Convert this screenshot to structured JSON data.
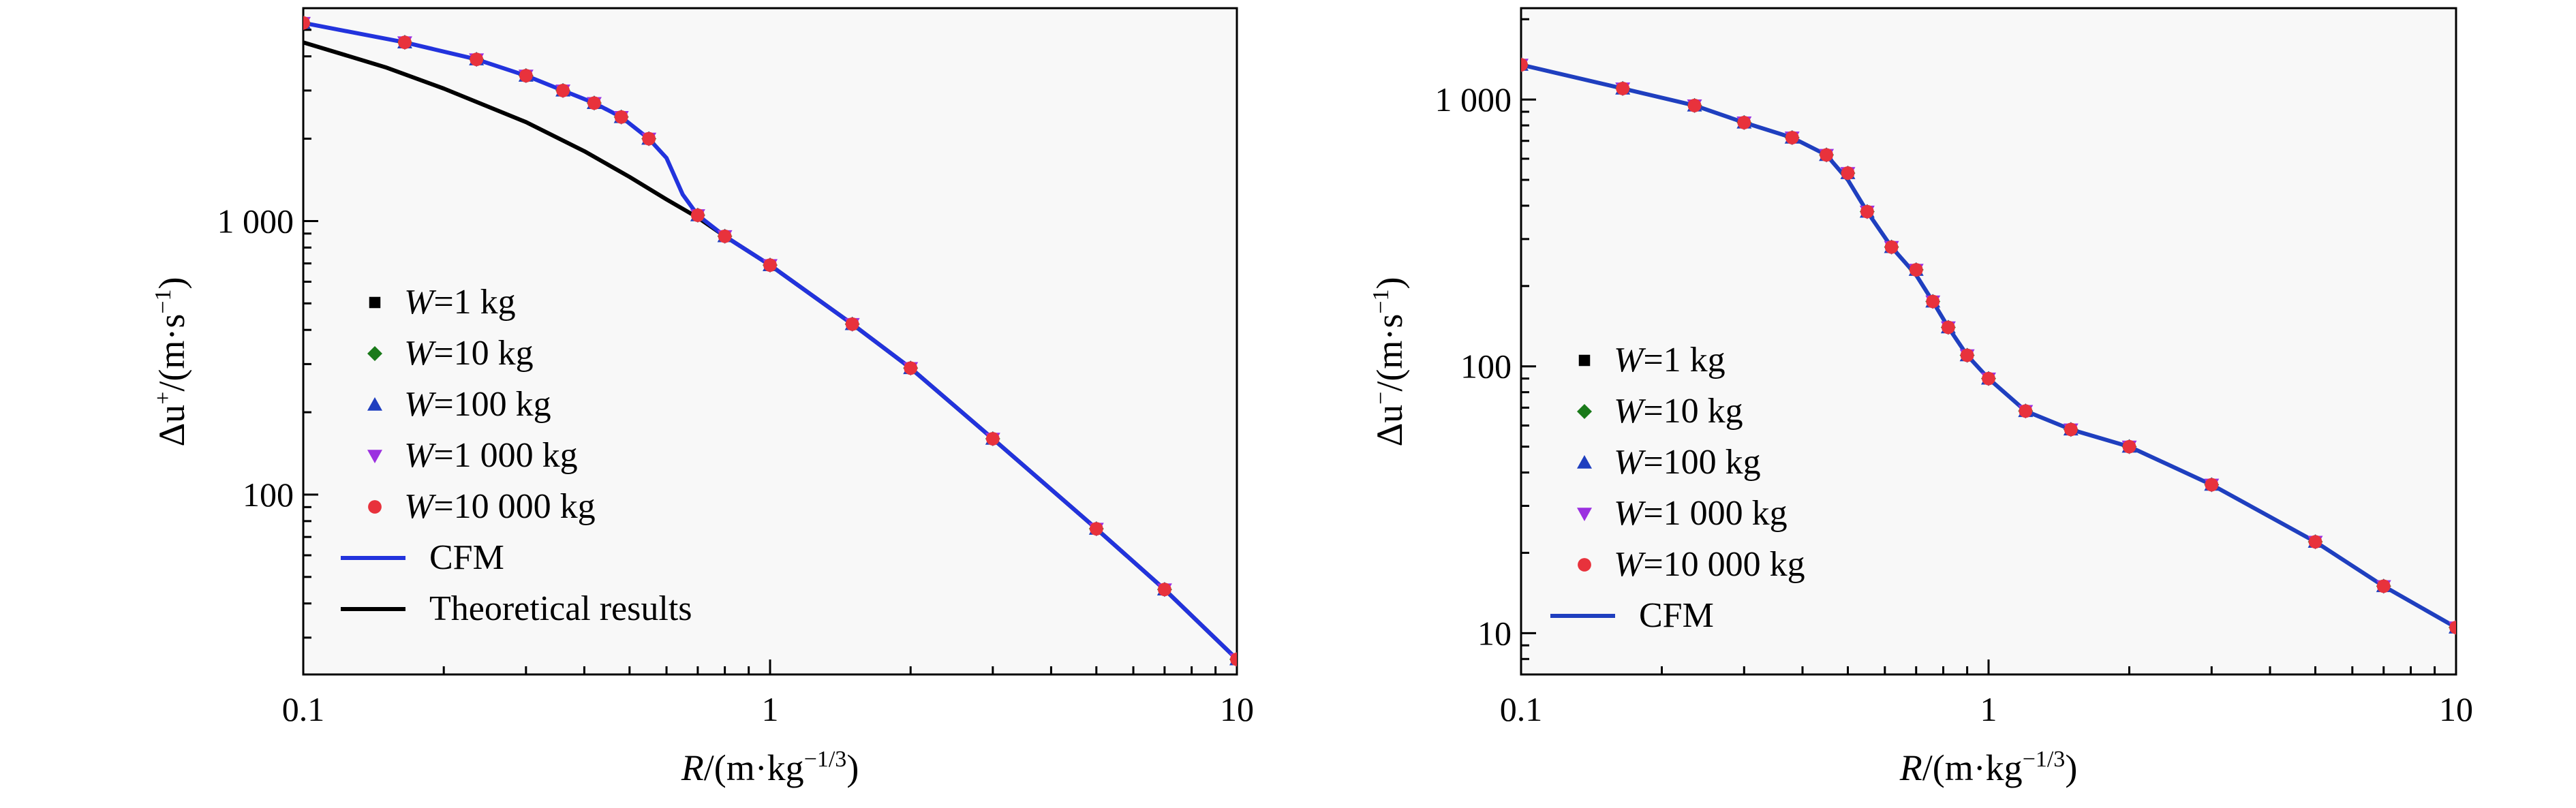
{
  "chart_data": [
    {
      "type": "scatter",
      "xscale": "log",
      "yscale": "log",
      "xlim": [
        0.1,
        10
      ],
      "ylim": [
        22,
        6000
      ],
      "xticks": [
        "0.1",
        "1",
        "10"
      ],
      "yticks": [
        "100",
        "1 000"
      ],
      "ytick_values": [
        100,
        1000
      ],
      "xlabel": {
        "var": "R",
        "unit_base": "/(m·kg",
        "unit_exp": "−1/3",
        "unit_close": ")"
      },
      "ylabel": {
        "var": "Δu",
        "sup": "+",
        "unit": "/(m·s",
        "unit_exp": "−1",
        "unit_close": ")"
      },
      "legend_position": "lower-left",
      "series": [
        {
          "name_var": "W",
          "name_rest": "=1  kg",
          "marker": "square",
          "color": "#000000",
          "x": [
            0.1,
            0.165,
            0.235,
            0.3,
            0.36,
            0.42,
            0.48,
            0.55,
            0.7,
            0.8,
            1.0,
            1.5,
            2.0,
            3.0,
            5.0,
            7.0,
            10.0
          ],
          "y": [
            5300,
            4500,
            3900,
            3400,
            3000,
            2700,
            2400,
            2000,
            1050,
            880,
            690,
            420,
            290,
            160,
            75,
            45,
            25
          ]
        },
        {
          "name_var": "W",
          "name_rest": "=10 kg",
          "marker": "diamond",
          "color": "#1a7a1a",
          "x": [
            0.1,
            0.165,
            0.235,
            0.3,
            0.36,
            0.42,
            0.48,
            0.55,
            0.7,
            0.8,
            1.0,
            1.5,
            2.0,
            3.0,
            5.0,
            7.0,
            10.0
          ],
          "y": [
            5300,
            4500,
            3900,
            3400,
            3000,
            2700,
            2400,
            2000,
            1050,
            880,
            690,
            420,
            290,
            160,
            75,
            45,
            25
          ]
        },
        {
          "name_var": "W",
          "name_rest": "=100 kg",
          "marker": "triangle-up",
          "color": "#1f3fbf",
          "x": [
            0.1,
            0.165,
            0.235,
            0.3,
            0.36,
            0.42,
            0.48,
            0.55,
            0.7,
            0.8,
            1.0,
            1.5,
            2.0,
            3.0,
            5.0,
            7.0,
            10.0
          ],
          "y": [
            5300,
            4500,
            3900,
            3400,
            3000,
            2700,
            2400,
            2000,
            1050,
            880,
            690,
            420,
            290,
            160,
            75,
            45,
            25
          ]
        },
        {
          "name_var": "W",
          "name_rest": "=1 000 kg",
          "marker": "triangle-down",
          "color": "#9b30e0",
          "x": [
            0.1,
            0.165,
            0.235,
            0.3,
            0.36,
            0.42,
            0.48,
            0.55,
            0.7,
            0.8,
            1.0,
            1.5,
            2.0,
            3.0,
            5.0,
            7.0,
            10.0
          ],
          "y": [
            5300,
            4500,
            3900,
            3400,
            3000,
            2700,
            2400,
            2000,
            1050,
            880,
            690,
            420,
            290,
            160,
            75,
            45,
            25
          ]
        },
        {
          "name_var": "W",
          "name_rest": "=10 000 kg",
          "marker": "circle",
          "color": "#e8323c",
          "x": [
            0.1,
            0.165,
            0.235,
            0.3,
            0.36,
            0.42,
            0.48,
            0.55,
            0.7,
            0.8,
            1.0,
            1.5,
            2.0,
            3.0,
            5.0,
            7.0,
            10.0
          ],
          "y": [
            5300,
            4500,
            3900,
            3400,
            3000,
            2700,
            2400,
            2000,
            1050,
            880,
            690,
            420,
            290,
            160,
            75,
            45,
            25
          ]
        },
        {
          "name": "CFM",
          "marker": "line",
          "color": "#2233dd",
          "x": [
            0.1,
            0.165,
            0.235,
            0.3,
            0.36,
            0.42,
            0.48,
            0.55,
            0.6,
            0.65,
            0.7,
            0.8,
            1.0,
            1.5,
            2.0,
            3.0,
            5.0,
            7.0,
            10.0
          ],
          "y": [
            5300,
            4500,
            3900,
            3400,
            3000,
            2700,
            2400,
            2000,
            1700,
            1250,
            1050,
            880,
            690,
            420,
            290,
            160,
            75,
            45,
            25
          ]
        },
        {
          "name": "Theoretical results",
          "marker": "line",
          "color": "#000000",
          "x": [
            0.1,
            0.15,
            0.2,
            0.3,
            0.4,
            0.5,
            0.6,
            0.7,
            0.8,
            1.0,
            1.5,
            2.0,
            3.0,
            5.0,
            7.0,
            10.0
          ],
          "y": [
            4500,
            3650,
            3050,
            2300,
            1800,
            1450,
            1200,
            1030,
            880,
            690,
            420,
            290,
            160,
            75,
            45,
            25
          ]
        }
      ]
    },
    {
      "type": "scatter",
      "xscale": "log",
      "yscale": "log",
      "xlim": [
        0.1,
        10
      ],
      "ylim": [
        7,
        2200
      ],
      "xticks": [
        "0.1",
        "1",
        "10"
      ],
      "yticks": [
        "10",
        "100",
        "1 000"
      ],
      "ytick_values": [
        10,
        100,
        1000
      ],
      "xlabel": {
        "var": "R",
        "unit_base": "/(m·kg",
        "unit_exp": "−1/3",
        "unit_close": ")"
      },
      "ylabel": {
        "var": "Δu",
        "sup": "−",
        "unit": "/(m·s",
        "unit_exp": "−1",
        "unit_close": ")"
      },
      "legend_position": "lower-left",
      "series": [
        {
          "name_var": "W",
          "name_rest": "=1  kg",
          "marker": "square",
          "color": "#000000",
          "x": [
            0.1,
            0.165,
            0.235,
            0.3,
            0.38,
            0.45,
            0.5,
            0.55,
            0.62,
            0.7,
            0.76,
            0.82,
            0.9,
            1.0,
            1.2,
            1.5,
            2.0,
            3.0,
            5.0,
            7.0,
            10.0
          ],
          "y": [
            1350,
            1100,
            950,
            820,
            720,
            620,
            530,
            380,
            280,
            230,
            175,
            140,
            110,
            90,
            68,
            58,
            50,
            36,
            22,
            15,
            10.5
          ]
        },
        {
          "name_var": "W",
          "name_rest": "=10 kg",
          "marker": "diamond",
          "color": "#1a7a1a",
          "x": [
            0.1,
            0.165,
            0.235,
            0.3,
            0.38,
            0.45,
            0.5,
            0.55,
            0.62,
            0.7,
            0.76,
            0.82,
            0.9,
            1.0,
            1.2,
            1.5,
            2.0,
            3.0,
            5.0,
            7.0,
            10.0
          ],
          "y": [
            1350,
            1100,
            950,
            820,
            720,
            620,
            530,
            380,
            280,
            230,
            175,
            140,
            110,
            90,
            68,
            58,
            50,
            36,
            22,
            15,
            10.5
          ]
        },
        {
          "name_var": "W",
          "name_rest": "=100 kg",
          "marker": "triangle-up",
          "color": "#1f3fbf",
          "x": [
            0.1,
            0.165,
            0.235,
            0.3,
            0.38,
            0.45,
            0.5,
            0.55,
            0.62,
            0.7,
            0.76,
            0.82,
            0.9,
            1.0,
            1.2,
            1.5,
            2.0,
            3.0,
            5.0,
            7.0,
            10.0
          ],
          "y": [
            1350,
            1100,
            950,
            820,
            720,
            620,
            530,
            380,
            280,
            230,
            175,
            140,
            110,
            90,
            68,
            58,
            50,
            36,
            22,
            15,
            10.5
          ]
        },
        {
          "name_var": "W",
          "name_rest": "=1 000 kg",
          "marker": "triangle-down",
          "color": "#9b30e0",
          "x": [
            0.1,
            0.165,
            0.235,
            0.3,
            0.38,
            0.45,
            0.5,
            0.55,
            0.62,
            0.7,
            0.76,
            0.82,
            0.9,
            1.0,
            1.2,
            1.5,
            2.0,
            3.0,
            5.0,
            7.0,
            10.0
          ],
          "y": [
            1350,
            1100,
            950,
            820,
            720,
            620,
            530,
            380,
            280,
            230,
            175,
            140,
            110,
            90,
            68,
            58,
            50,
            36,
            22,
            15,
            10.5
          ]
        },
        {
          "name_var": "W",
          "name_rest": "=10 000 kg",
          "marker": "circle",
          "color": "#e8323c",
          "x": [
            0.1,
            0.165,
            0.235,
            0.3,
            0.38,
            0.45,
            0.5,
            0.55,
            0.62,
            0.7,
            0.76,
            0.82,
            0.9,
            1.0,
            1.2,
            1.5,
            2.0,
            3.0,
            5.0,
            7.0,
            10.0
          ],
          "y": [
            1350,
            1100,
            950,
            820,
            720,
            620,
            530,
            380,
            280,
            230,
            175,
            140,
            110,
            90,
            68,
            58,
            50,
            36,
            22,
            15,
            10.5
          ]
        },
        {
          "name": "CFM",
          "marker": "line",
          "color": "#1f3fbf",
          "x": [
            0.1,
            0.165,
            0.235,
            0.3,
            0.38,
            0.45,
            0.5,
            0.55,
            0.62,
            0.7,
            0.76,
            0.82,
            0.9,
            1.0,
            1.2,
            1.5,
            2.0,
            3.0,
            5.0,
            7.0,
            10.0
          ],
          "y": [
            1350,
            1100,
            950,
            820,
            720,
            620,
            500,
            380,
            280,
            220,
            175,
            140,
            110,
            90,
            68,
            58,
            50,
            36,
            22,
            15,
            10.5
          ]
        }
      ]
    }
  ]
}
